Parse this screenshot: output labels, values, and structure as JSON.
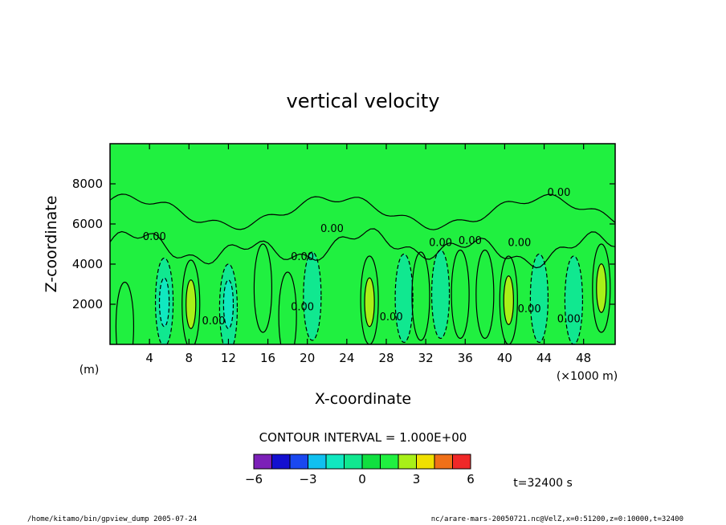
{
  "chart_data": {
    "type": "contour",
    "title": "vertical velocity",
    "xlabel": "X-coordinate",
    "ylabel": "Z-coordinate",
    "x_unit": "(×1000 m)",
    "y_unit": "(m)",
    "xlim": [
      0,
      51.2
    ],
    "ylim": [
      0,
      10000
    ],
    "x_ticks": [
      4,
      8,
      12,
      16,
      20,
      24,
      28,
      32,
      36,
      40,
      44,
      48
    ],
    "y_ticks": [
      2000,
      4000,
      6000,
      8000
    ],
    "contour_interval_label": "CONTOUR INTERVAL = 1.000E+00",
    "contour_zero_label": "0.00",
    "zero_labels": [
      {
        "x": 4.5,
        "y": 5200
      },
      {
        "x": 22.5,
        "y": 5600
      },
      {
        "x": 19.5,
        "y": 4200
      },
      {
        "x": 33.5,
        "y": 4900
      },
      {
        "x": 36.5,
        "y": 5000
      },
      {
        "x": 41.5,
        "y": 4900
      },
      {
        "x": 45.5,
        "y": 7400
      },
      {
        "x": 10.5,
        "y": 1000
      },
      {
        "x": 19.5,
        "y": 1700
      },
      {
        "x": 28.5,
        "y": 1200
      },
      {
        "x": 42.5,
        "y": 1600
      },
      {
        "x": 46.5,
        "y": 1100
      }
    ],
    "colorbar": {
      "levels": [
        -6,
        -5,
        -4,
        -3,
        -2,
        -1,
        0,
        1,
        2,
        3,
        4,
        5,
        6
      ],
      "tick_labels": [
        "−6",
        "−3",
        "0",
        "3",
        "6"
      ],
      "colors": [
        "#7c20b8",
        "#1410d0",
        "#1a48f0",
        "#10c0f0",
        "#10e8c0",
        "#10e890",
        "#10e040",
        "#20f040",
        "#a8f018",
        "#f0e000",
        "#f07018",
        "#f02828",
        "#f8a0a0"
      ]
    },
    "cells": [
      {
        "x": 1.5,
        "y": 900,
        "level": 1
      },
      {
        "x": 5.5,
        "y": 2100,
        "level": -1
      },
      {
        "x": 5.5,
        "y": 2100,
        "level": -2
      },
      {
        "x": 8.2,
        "y": 2000,
        "level": 1
      },
      {
        "x": 8.2,
        "y": 2000,
        "level": 2
      },
      {
        "x": 12,
        "y": 1800,
        "level": -1
      },
      {
        "x": 12,
        "y": 2000,
        "level": -2
      },
      {
        "x": 15.5,
        "y": 2800,
        "level": 1
      },
      {
        "x": 18,
        "y": 1400,
        "level": 1
      },
      {
        "x": 20.5,
        "y": 2400,
        "level": -1
      },
      {
        "x": 26.3,
        "y": 2200,
        "level": 1
      },
      {
        "x": 26.3,
        "y": 2100,
        "level": 2
      },
      {
        "x": 29.8,
        "y": 2300,
        "level": -1
      },
      {
        "x": 31.5,
        "y": 2400,
        "level": 1
      },
      {
        "x": 33.5,
        "y": 2500,
        "level": -1
      },
      {
        "x": 35.5,
        "y": 2500,
        "level": 1
      },
      {
        "x": 38,
        "y": 2500,
        "level": 1
      },
      {
        "x": 40.4,
        "y": 2200,
        "level": 1
      },
      {
        "x": 40.4,
        "y": 2200,
        "level": 2
      },
      {
        "x": 43.5,
        "y": 2300,
        "level": -1
      },
      {
        "x": 47,
        "y": 2200,
        "level": -1
      },
      {
        "x": 49.8,
        "y": 2800,
        "level": 1
      },
      {
        "x": 49.8,
        "y": 2800,
        "level": 2
      }
    ]
  },
  "time_label": "t=32400 s",
  "footer": {
    "left": "/home/kitamo/bin/gpview_dump  2005-07-24",
    "right": "nc/arare-mars-20050721.nc@VelZ,x=0:51200,z=0:10000,t=32400"
  }
}
